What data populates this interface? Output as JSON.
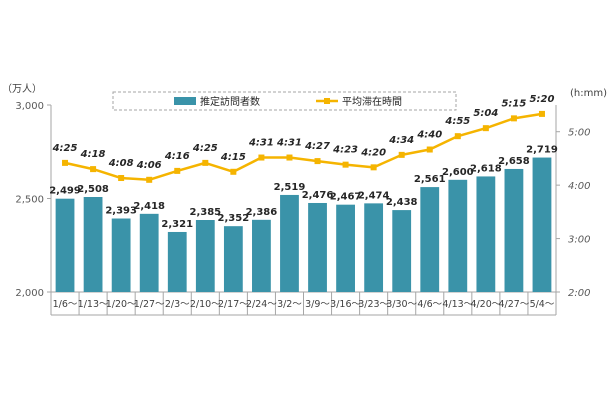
{
  "chart_data": {
    "type": "bar",
    "left_axis_unit": "（万人）",
    "right_axis_unit": "(h:mm)",
    "categories": [
      "1/6～",
      "1/13～",
      "1/20～",
      "1/27～",
      "2/3～",
      "2/10～",
      "2/17～",
      "2/24～",
      "3/2～",
      "3/9～",
      "3/16～",
      "3/23～",
      "3/30～",
      "4/6～",
      "4/13～",
      "4/20～",
      "4/27～",
      "5/4～"
    ],
    "ylim": [
      2000,
      3000
    ],
    "yticks": [
      2000,
      2500,
      3000
    ],
    "ytick_labels": [
      "2,000",
      "2,500",
      "3,000"
    ],
    "y2lim_minutes": [
      120,
      330
    ],
    "y2ticks_minutes": [
      120,
      180,
      240,
      300
    ],
    "y2tick_labels": [
      "2:00",
      "3:00",
      "4:00",
      "5:00"
    ],
    "series": [
      {
        "name": "推定訪問者数",
        "type": "bar",
        "axis": "left",
        "color": "#3a93a9",
        "values": [
          2499,
          2508,
          2393,
          2418,
          2321,
          2385,
          2352,
          2386,
          2519,
          2476,
          2467,
          2474,
          2438,
          2561,
          2600,
          2618,
          2658,
          2719
        ],
        "labels": [
          "2,499",
          "2,508",
          "2,393",
          "2,418",
          "2,321",
          "2,385",
          "2,352",
          "2,386",
          "2,519",
          "2,476",
          "2,467",
          "2,474",
          "2,438",
          "2,561",
          "2,600",
          "2,618",
          "2,658",
          "2,719"
        ]
      },
      {
        "name": "平均滞在時間",
        "type": "line",
        "axis": "right",
        "color": "#f5b400",
        "values_minutes": [
          265,
          258,
          248,
          246,
          256,
          265,
          255,
          271,
          271,
          267,
          263,
          260,
          274,
          280,
          295,
          304,
          315,
          320
        ],
        "labels": [
          "4:25",
          "4:18",
          "4:08",
          "4:06",
          "4:16",
          "4:25",
          "4:15",
          "4:31",
          "4:31",
          "4:27",
          "4:23",
          "4:20",
          "4:34",
          "4:40",
          "4:55",
          "5:04",
          "5:15",
          "5:20"
        ]
      }
    ],
    "legend_position": "top-center",
    "grid": false
  }
}
